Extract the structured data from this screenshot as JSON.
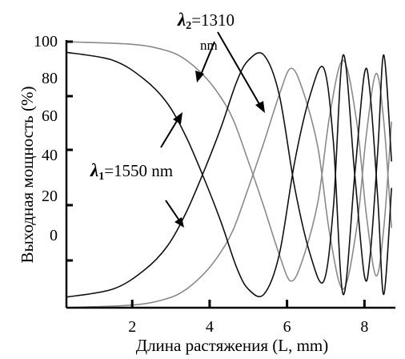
{
  "chart_data": {
    "type": "line",
    "title": "",
    "xlabel": "Длина растяжения (L, mm)",
    "ylabel": "Выходная мощность (%)",
    "xlim": [
      0.3,
      8.8
    ],
    "ylim": [
      0,
      100
    ],
    "x_ticks": [
      2,
      4,
      6,
      8
    ],
    "y_tick_labels": [
      "100",
      "80",
      "60",
      "40",
      "20",
      "0"
    ],
    "grid": false,
    "legend": "none",
    "annotations": [
      {
        "label_symbol": "λ",
        "label_subscript": "2",
        "label_rest": "=1310",
        "label_second_line": "nm"
      },
      {
        "label_symbol": "λ",
        "label_subscript": "1",
        "label_rest": "=1550 nm"
      }
    ],
    "series": [
      {
        "wavelength_nm": 1310,
        "pair": "grey",
        "color": "#8a8a8a",
        "bar_curve": [
          [
            0.3,
            100
          ],
          [
            2.0,
            99
          ],
          [
            2.8,
            97
          ],
          [
            3.3,
            94
          ],
          [
            3.8,
            88
          ],
          [
            4.2,
            81
          ],
          [
            4.6,
            71
          ],
          [
            5.0,
            55
          ],
          [
            5.4,
            38
          ],
          [
            5.8,
            20
          ],
          [
            6.1,
            10
          ],
          [
            6.4,
            18
          ],
          [
            6.8,
            40
          ],
          [
            7.1,
            72
          ],
          [
            7.45,
            93
          ],
          [
            7.8,
            70
          ],
          [
            8.05,
            35
          ],
          [
            8.3,
            12
          ],
          [
            8.5,
            30
          ],
          [
            8.7,
            70
          ]
        ],
        "cross_curve": [
          [
            0.3,
            0
          ],
          [
            2.0,
            1
          ],
          [
            2.8,
            3
          ],
          [
            3.3,
            6
          ],
          [
            3.8,
            12
          ],
          [
            4.2,
            19
          ],
          [
            4.6,
            29
          ],
          [
            5.0,
            45
          ],
          [
            5.4,
            62
          ],
          [
            5.8,
            80
          ],
          [
            6.1,
            90
          ],
          [
            6.4,
            82
          ],
          [
            6.8,
            60
          ],
          [
            7.1,
            28
          ],
          [
            7.45,
            7
          ],
          [
            7.8,
            30
          ],
          [
            8.05,
            65
          ],
          [
            8.3,
            88
          ],
          [
            8.5,
            70
          ],
          [
            8.7,
            30
          ]
        ]
      },
      {
        "wavelength_nm": 1550,
        "pair": "black",
        "color": "#111111",
        "bar_curve": [
          [
            0.3,
            96
          ],
          [
            1.5,
            93
          ],
          [
            2.3,
            86
          ],
          [
            2.9,
            77
          ],
          [
            3.4,
            64
          ],
          [
            3.9,
            47
          ],
          [
            4.3,
            32
          ],
          [
            4.7,
            15
          ],
          [
            5.0,
            7
          ],
          [
            5.4,
            5
          ],
          [
            5.8,
            20
          ],
          [
            6.2,
            55
          ],
          [
            6.6,
            80
          ],
          [
            6.95,
            90
          ],
          [
            7.2,
            62
          ],
          [
            7.45,
            5
          ],
          [
            7.75,
            50
          ],
          [
            8.0,
            88
          ],
          [
            8.15,
            80
          ],
          [
            8.35,
            40
          ],
          [
            8.5,
            5
          ],
          [
            8.7,
            45
          ]
        ],
        "cross_curve": [
          [
            0.3,
            4
          ],
          [
            1.5,
            7
          ],
          [
            2.3,
            14
          ],
          [
            2.9,
            23
          ],
          [
            3.4,
            36
          ],
          [
            3.9,
            53
          ],
          [
            4.3,
            68
          ],
          [
            4.7,
            85
          ],
          [
            5.0,
            93
          ],
          [
            5.4,
            95
          ],
          [
            5.8,
            80
          ],
          [
            6.2,
            45
          ],
          [
            6.6,
            20
          ],
          [
            6.95,
            10
          ],
          [
            7.2,
            38
          ],
          [
            7.45,
            95
          ],
          [
            7.75,
            50
          ],
          [
            8.0,
            12
          ],
          [
            8.15,
            20
          ],
          [
            8.35,
            60
          ],
          [
            8.5,
            95
          ],
          [
            8.7,
            55
          ]
        ]
      }
    ]
  }
}
